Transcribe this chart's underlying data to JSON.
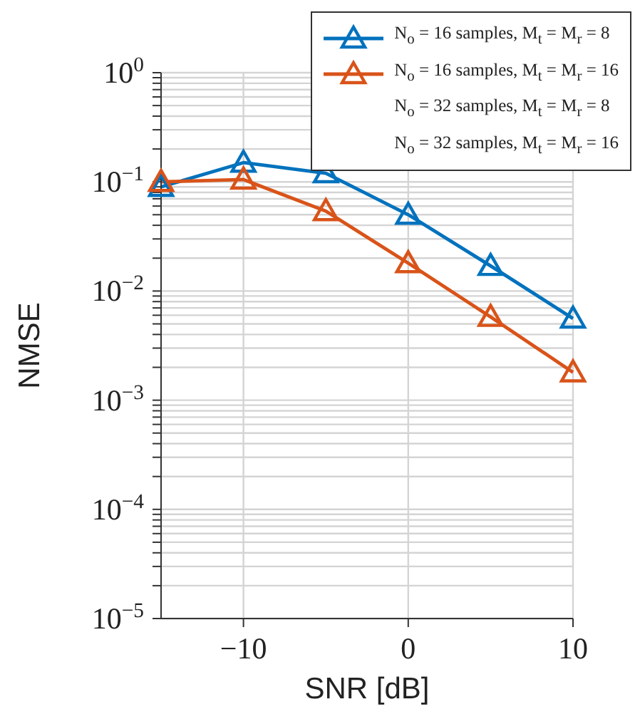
{
  "chart_data": {
    "type": "line",
    "xlabel": "SNR [dB]",
    "ylabel": "NMSE",
    "x": [
      -15,
      -10,
      -5,
      0,
      5,
      10
    ],
    "series": [
      {
        "name": "N$_{o}$ = 16 samples, M$_{t}$ = M$_{r}$ = 8",
        "color": "#0072bd",
        "values": [
          0.09,
          0.15,
          0.12,
          0.05,
          0.017,
          0.0056
        ]
      },
      {
        "name": "N$_{o}$ = 16 samples, M$_{t}$ = M$_{r}$ = 16",
        "color": "#d95319",
        "values": [
          0.1,
          0.105,
          0.054,
          0.018,
          0.0058,
          0.0018
        ]
      },
      {
        "name": "N$_{o}$ = 32 samples, M$_{t}$ = M$_{r}$ = 8",
        "values": [
          null,
          null,
          null,
          null,
          null,
          null
        ]
      },
      {
        "name": "N$_{o}$ = 32 samples, M$_{t}$ = M$_{r}$ = 16",
        "values": [
          null,
          null,
          null,
          null,
          null,
          null
        ]
      }
    ],
    "log": "y",
    "xlim": [
      -15,
      10
    ],
    "xticks": [
      {
        "value": -10,
        "label": "−10"
      },
      0,
      10
    ],
    "ylim": [
      1e-05,
      1
    ],
    "yticks": [
      {
        "value": 1e-05,
        "label": "10$^{−5}$"
      },
      {
        "value": 2e-05,
        "label": null
      },
      {
        "value": 3e-05,
        "label": null
      },
      {
        "value": 4e-05,
        "label": null
      },
      {
        "value": 5e-05,
        "label": null
      },
      {
        "value": 6e-05,
        "label": null
      },
      {
        "value": 7e-05,
        "label": null
      },
      {
        "value": 8e-05,
        "label": null
      },
      {
        "value": 9e-05,
        "label": null
      },
      {
        "value": 0.0001,
        "label": "10$^{−4}$"
      },
      {
        "value": 0.0002,
        "label": null
      },
      {
        "value": 0.0003,
        "label": null
      },
      {
        "value": 0.0004,
        "label": null
      },
      {
        "value": 0.0005,
        "label": null
      },
      {
        "value": 0.0006,
        "label": null
      },
      {
        "value": 0.0007,
        "label": null
      },
      {
        "value": 0.0008,
        "label": null
      },
      {
        "value": 0.0009,
        "label": null
      },
      {
        "value": 0.001,
        "label": "10$^{−3}$"
      },
      {
        "value": 0.002,
        "label": null
      },
      {
        "value": 0.003,
        "label": null
      },
      {
        "value": 0.004,
        "label": null
      },
      {
        "value": 0.005,
        "label": null
      },
      {
        "value": 0.006,
        "label": null
      },
      {
        "value": 0.007,
        "label": null
      },
      {
        "value": 0.008,
        "label": null
      },
      {
        "value": 0.009,
        "label": null
      },
      {
        "value": 0.01,
        "label": "10$^{−2}$"
      },
      {
        "value": 0.02,
        "label": null
      },
      {
        "value": 0.03,
        "label": null
      },
      {
        "value": 0.04,
        "label": null
      },
      {
        "value": 0.05,
        "label": null
      },
      {
        "value": 0.06,
        "label": null
      },
      {
        "value": 0.07,
        "label": null
      },
      {
        "value": 0.08,
        "label": null
      },
      {
        "value": 0.09,
        "label": null
      },
      {
        "value": 0.1,
        "label": "10$^{−1}$"
      },
      {
        "value": 0.2,
        "label": null
      },
      {
        "value": 0.3,
        "label": null
      },
      {
        "value": 0.4,
        "label": null
      },
      {
        "value": 0.5,
        "label": null
      },
      {
        "value": 0.6,
        "label": null
      },
      {
        "value": 0.7,
        "label": null
      },
      {
        "value": 0.8,
        "label": null
      },
      {
        "value": 0.9,
        "label": null
      },
      {
        "value": 1,
        "label": "10$^{0}$"
      }
    ],
    "grid": true,
    "legend": "top right",
    "marker": "triangle",
    "line_style": "solid"
  }
}
